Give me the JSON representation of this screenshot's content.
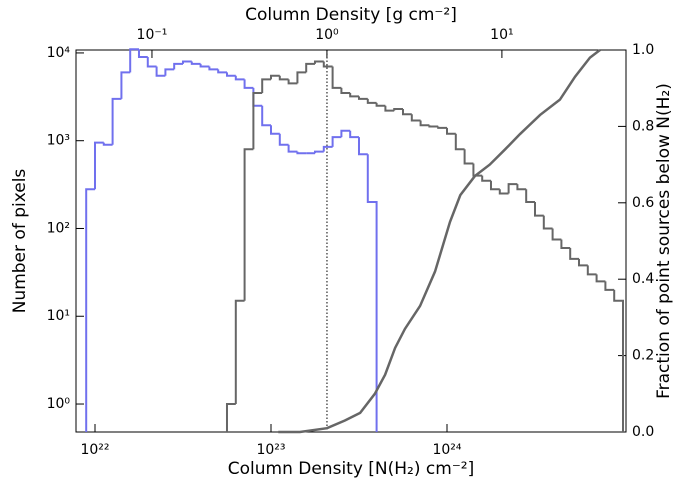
{
  "chart_data": {
    "type": "histogram",
    "xlabel": "Column Density [N(H₂) cm⁻²]",
    "ylabel": "Number of pixels",
    "y2label": "Fraction of point sources below N(H₂)",
    "x2label": "Column Density [g cm⁻²]",
    "xscale": "log",
    "yscale": "log",
    "x2scale": "log",
    "xlim": [
      7.8e+21,
      1.04e+25
    ],
    "xticks": [
      {
        "value": 1e+22,
        "label": "10²²"
      },
      {
        "value": 1e+23,
        "label": "10²³"
      },
      {
        "value": 1e+24,
        "label": "10²⁴"
      }
    ],
    "x2lim": [
      0.0368,
      51.2
    ],
    "x2ticks": [
      {
        "value": 0.1,
        "label": "10⁻¹"
      },
      {
        "value": 1,
        "label": "10⁰"
      },
      {
        "value": 10,
        "label": "10¹"
      }
    ],
    "ylim": [
      0.48,
      10800
    ],
    "yticks": [
      {
        "value": 1,
        "label": "10⁰"
      },
      {
        "value": 10,
        "label": "10¹"
      },
      {
        "value": 100,
        "label": "10²"
      },
      {
        "value": 1000,
        "label": "10³"
      },
      {
        "value": 10000,
        "label": "10⁴"
      }
    ],
    "y2lim": [
      0,
      1
    ],
    "y2ticks": [
      {
        "value": 0,
        "label": "0.0"
      },
      0.2,
      0.4,
      0.6,
      0.8,
      {
        "value": 1,
        "label": "1.0"
      }
    ],
    "vline": 2.08e+23,
    "series": [
      {
        "type": "histogram",
        "color": "#7070ee",
        "bins": [
          8.913e+21,
          1e+22,
          1.122e+22,
          1.259e+22,
          1.413e+22,
          1.585e+22,
          1.778e+22,
          1.995e+22,
          2.239e+22,
          2.512e+22,
          2.818e+22,
          3.162e+22,
          3.548e+22,
          3.981e+22,
          4.467e+22,
          5.012e+22,
          5.623e+22,
          6.31e+22,
          7.079e+22,
          7.943e+22,
          8.913e+22,
          1e+23,
          1.122e+23,
          1.259e+23,
          1.413e+23,
          1.585e+23,
          1.778e+23,
          1.995e+23,
          2.239e+23,
          2.512e+23,
          2.818e+23,
          3.162e+23,
          3.548e+23,
          3.981e+23
        ],
        "values": [
          280,
          950,
          900,
          3000,
          6000,
          11000,
          9000,
          7000,
          5500,
          6500,
          7500,
          8000,
          7500,
          7000,
          6500,
          6000,
          5500,
          5000,
          4000,
          2500,
          1500,
          1200,
          900,
          750,
          720,
          720,
          750,
          850,
          1100,
          1300,
          1100,
          700,
          200
        ]
      },
      {
        "type": "histogram",
        "color": "#666666",
        "bins": [
          5.623e+22,
          6.31e+22,
          7.079e+22,
          7.943e+22,
          8.913e+22,
          1e+23,
          1.122e+23,
          1.259e+23,
          1.413e+23,
          1.585e+23,
          1.778e+23,
          1.995e+23,
          2.239e+23,
          2.512e+23,
          2.818e+23,
          3.162e+23,
          3.548e+23,
          3.981e+23,
          4.467e+23,
          5.012e+23,
          5.623e+23,
          6.31e+23,
          7.079e+23,
          7.943e+23,
          8.913e+23,
          1e+24,
          1.122e+24,
          1.259e+24,
          1.413e+24,
          1.585e+24,
          1.778e+24,
          1.995e+24,
          2.239e+24,
          2.512e+24,
          2.818e+24,
          3.162e+24,
          3.548e+24,
          3.981e+24,
          4.467e+24,
          5.012e+24,
          5.623e+24,
          6.31e+24,
          7.079e+24,
          7.943e+24,
          8.913e+24,
          1e+25
        ],
        "values": [
          1,
          15,
          800,
          3500,
          5000,
          5500,
          5000,
          4500,
          6000,
          7500,
          8000,
          7000,
          4000,
          3500,
          3200,
          3000,
          2700,
          2500,
          2200,
          2300,
          2000,
          1700,
          1500,
          1450,
          1400,
          1200,
          800,
          550,
          400,
          350,
          280,
          250,
          320,
          280,
          200,
          140,
          100,
          75,
          60,
          45,
          38,
          30,
          25,
          20,
          15
        ]
      },
      {
        "type": "line",
        "axis": "y2",
        "color": "#666666",
        "x": [
          1.1e+23,
          1.46e+23,
          2.08e+23,
          2.63e+23,
          3.21e+23,
          3.89e+23,
          4.45e+23,
          5.07e+23,
          5.77e+23,
          7.03e+23,
          8.55e+23,
          1.04e+24,
          1.19e+24,
          1.44e+24,
          1.75e+24,
          2.14e+24,
          2.6e+24,
          3.38e+24,
          4.38e+24,
          5.34e+24,
          6.49e+24,
          7.4e+24
        ],
        "values": [
          0,
          0,
          0.01,
          0.03,
          0.05,
          0.1,
          0.15,
          0.22,
          0.27,
          0.33,
          0.42,
          0.55,
          0.62,
          0.67,
          0.7,
          0.74,
          0.78,
          0.83,
          0.87,
          0.93,
          0.98,
          1.0
        ]
      }
    ]
  }
}
